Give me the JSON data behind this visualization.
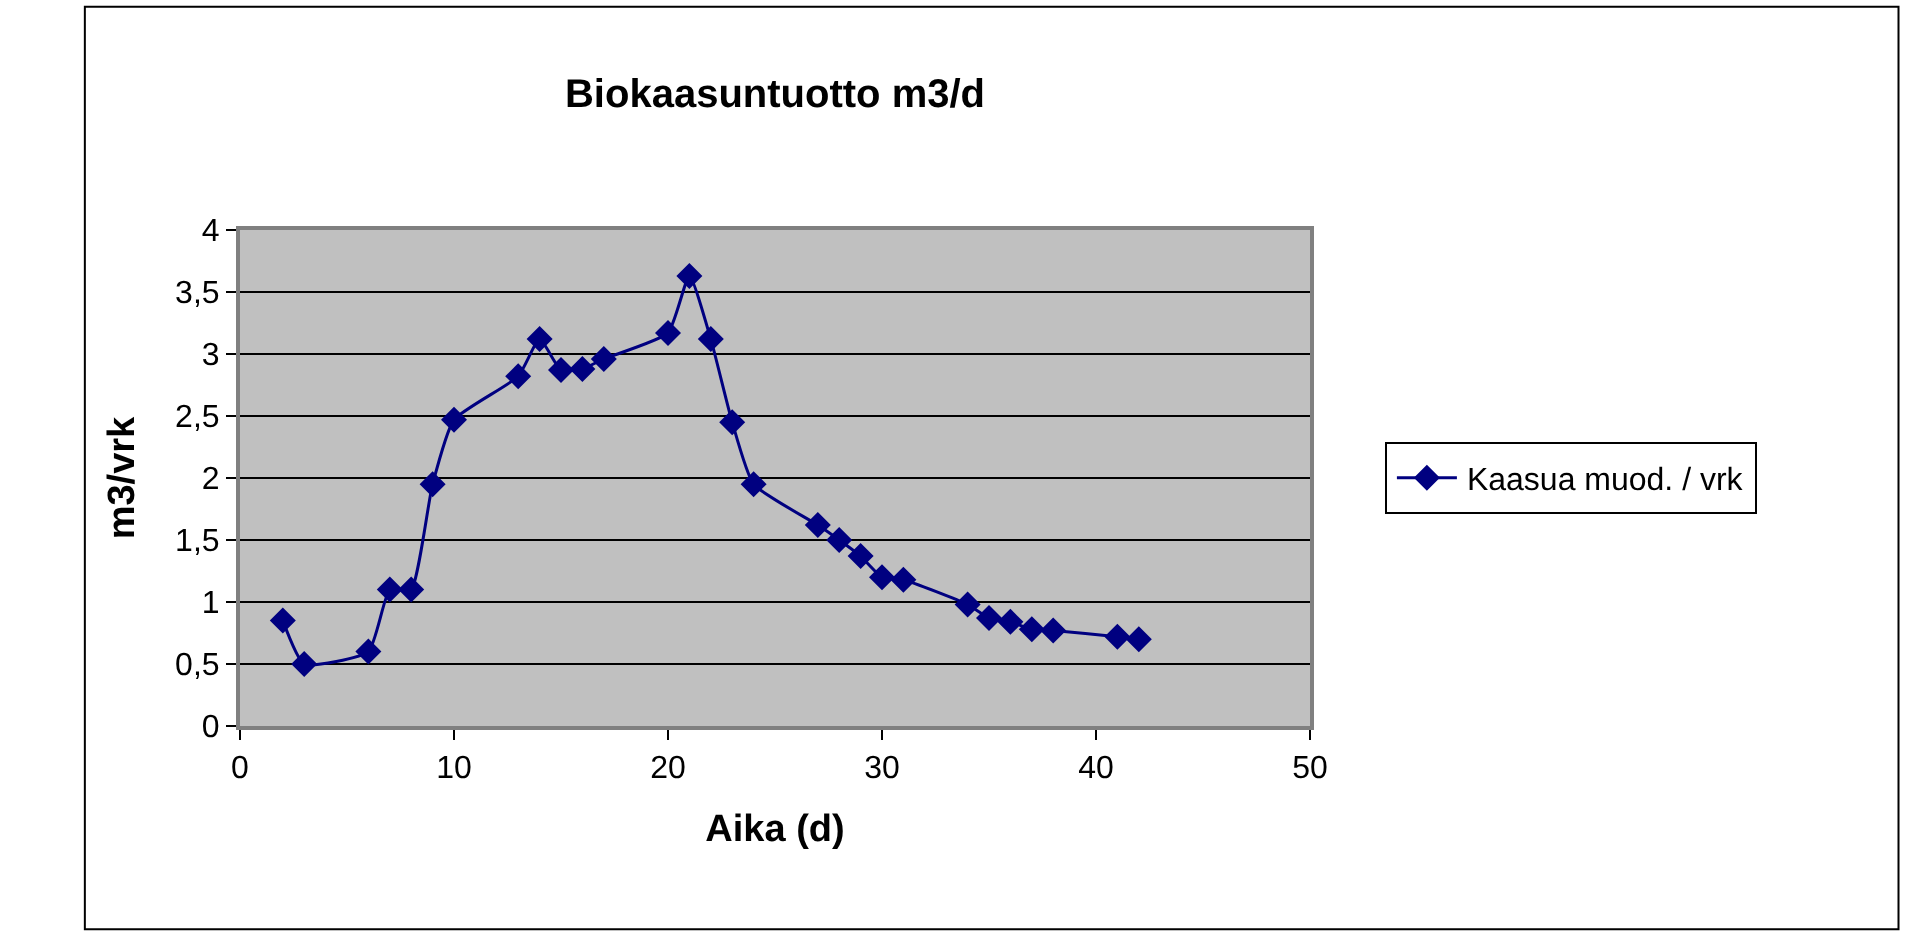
{
  "chart_data": {
    "type": "line",
    "title": "Biokaasuntuotto m3/d",
    "xlabel": "Aika (d)",
    "ylabel": "m3/vrk",
    "x": [
      2,
      3,
      6,
      7,
      8,
      9,
      10,
      13,
      14,
      15,
      16,
      17,
      20,
      21,
      22,
      23,
      24,
      27,
      28,
      29,
      30,
      31,
      34,
      35,
      36,
      37,
      38,
      41,
      42
    ],
    "series": [
      {
        "name": "Kaasua muod. / vrk",
        "color": "#000080",
        "values": [
          0.85,
          0.5,
          0.6,
          1.1,
          1.1,
          1.95,
          2.47,
          2.82,
          3.12,
          2.87,
          2.88,
          2.96,
          3.17,
          3.63,
          3.12,
          2.45,
          1.95,
          1.62,
          1.5,
          1.37,
          1.2,
          1.18,
          0.98,
          0.87,
          0.84,
          0.78,
          0.77,
          0.72,
          0.7
        ]
      }
    ],
    "xlim": [
      0,
      50
    ],
    "xticks": [
      0,
      10,
      20,
      30,
      40,
      50
    ],
    "ylim": [
      0,
      4
    ],
    "yticks": [
      0,
      {
        "value": 0.5,
        "label": "0,5"
      },
      1,
      {
        "value": 1.5,
        "label": "1,5"
      },
      2,
      {
        "value": 2.5,
        "label": "2,5"
      },
      3,
      {
        "value": 3.5,
        "label": "3,5"
      },
      4
    ],
    "grid": "y",
    "legend": "right",
    "marker": "diamond",
    "line_style": "solid"
  }
}
